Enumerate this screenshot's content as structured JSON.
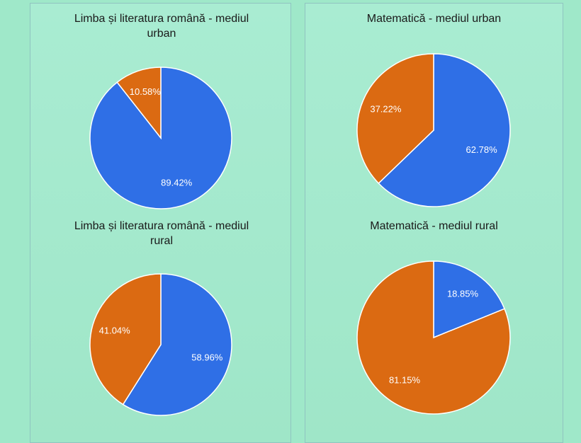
{
  "colors": {
    "blue": "#2f6fe6",
    "orange": "#db6a12",
    "background": "#9fe8c9"
  },
  "chart_data": [
    {
      "type": "pie",
      "title": "Limba și literatura română - mediul urban",
      "slices": [
        {
          "value": 89.42,
          "label": "89.42%",
          "color": "#2f6fe6"
        },
        {
          "value": 10.58,
          "label": "10.58%",
          "color": "#db6a12"
        }
      ]
    },
    {
      "type": "pie",
      "title": "Matematică - mediul urban",
      "slices": [
        {
          "value": 62.78,
          "label": "62.78%",
          "color": "#2f6fe6"
        },
        {
          "value": 37.22,
          "label": "37.22%",
          "color": "#db6a12"
        }
      ]
    },
    {
      "type": "pie",
      "title": "Limba și literatura română - mediul rural",
      "slices": [
        {
          "value": 58.96,
          "label": "58.96%",
          "color": "#2f6fe6"
        },
        {
          "value": 41.04,
          "label": "41.04%",
          "color": "#db6a12"
        }
      ]
    },
    {
      "type": "pie",
      "title": "Matematică - mediul rural",
      "slices": [
        {
          "value": 18.85,
          "label": "18.85%",
          "color": "#2f6fe6"
        },
        {
          "value": 81.15,
          "label": "81.15%",
          "color": "#db6a12"
        }
      ]
    }
  ]
}
